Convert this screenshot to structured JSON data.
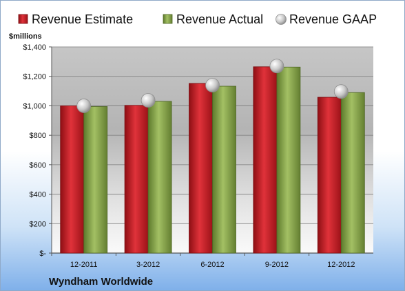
{
  "chart_data": {
    "type": "bar",
    "title": "",
    "unit_label": "$millions",
    "footer": "Wyndham Worldwide",
    "categories": [
      "12-2011",
      "3-2012",
      "6-2012",
      "9-2012",
      "12-2012"
    ],
    "series": [
      {
        "name": "Revenue Estimate",
        "type": "bar",
        "color": "#cc1f27",
        "values": [
          1000,
          1003,
          1152,
          1265,
          1058
        ]
      },
      {
        "name": "Revenue Actual",
        "type": "bar",
        "color": "#8aaa4e",
        "values": [
          995,
          1030,
          1133,
          1263,
          1090
        ]
      },
      {
        "name": "Revenue GAAP",
        "type": "marker",
        "color": "#c8c8c8",
        "values": [
          1000,
          1037,
          1140,
          1270,
          1097
        ]
      }
    ],
    "ylim": [
      0,
      1400
    ],
    "yticks": [
      0,
      200,
      400,
      600,
      800,
      1000,
      1200,
      1400
    ],
    "ytick_labels": [
      "$-",
      "$200",
      "$400",
      "$600",
      "$800",
      "$1,000",
      "$1,200",
      "$1,400"
    ],
    "grid": true,
    "legend_position": "top"
  }
}
